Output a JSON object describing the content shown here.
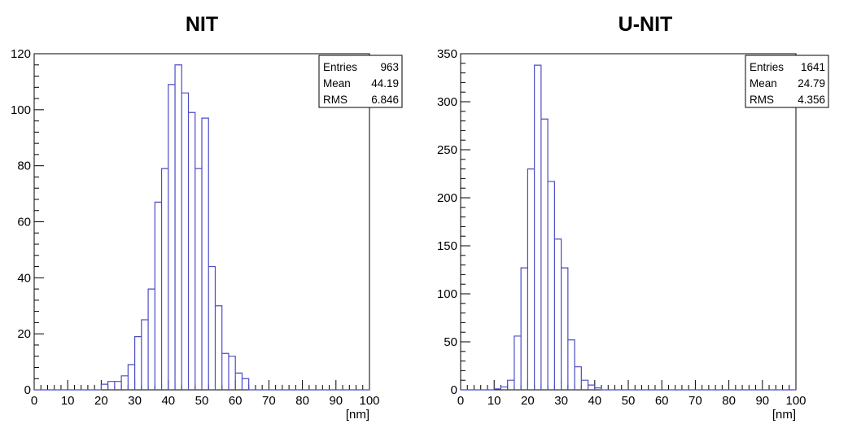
{
  "chart_data": [
    {
      "type": "bar",
      "title": "NIT",
      "xlabel": "[nm]",
      "ylabel": "",
      "xlim": [
        0,
        100
      ],
      "ylim": [
        0,
        120
      ],
      "bin_width": 2,
      "xticks": [
        "0",
        "10",
        "20",
        "30",
        "40",
        "50",
        "60",
        "70",
        "80",
        "90",
        "100"
      ],
      "yticks": [
        "0",
        "20",
        "40",
        "60",
        "80",
        "100",
        "120"
      ],
      "ytick_values": [
        0,
        20,
        40,
        60,
        80,
        100,
        120
      ],
      "bins_x_start": [
        20,
        22,
        24,
        26,
        28,
        30,
        32,
        34,
        36,
        38,
        40,
        42,
        44,
        46,
        48,
        50,
        52,
        54,
        56,
        58,
        60,
        62
      ],
      "values": [
        2,
        3,
        3,
        5,
        9,
        19,
        25,
        36,
        67,
        79,
        109,
        116,
        106,
        99,
        79,
        97,
        44,
        30,
        13,
        12,
        6,
        4
      ],
      "stats": {
        "entries_label": "Entries",
        "entries": "963",
        "mean_label": "Mean",
        "mean": "44.19",
        "rms_label": "RMS",
        "rms": "6.846"
      },
      "line_color": "#4b4bc8"
    },
    {
      "type": "bar",
      "title": "U-NIT",
      "xlabel": "[nm]",
      "ylabel": "",
      "xlim": [
        0,
        100
      ],
      "ylim": [
        0,
        350
      ],
      "bin_width": 2,
      "xticks": [
        "0",
        "10",
        "20",
        "30",
        "40",
        "50",
        "60",
        "70",
        "80",
        "90",
        "100"
      ],
      "yticks": [
        "0",
        "50",
        "100",
        "150",
        "200",
        "250",
        "300",
        "350"
      ],
      "ytick_values": [
        0,
        50,
        100,
        150,
        200,
        250,
        300,
        350
      ],
      "bins_x_start": [
        10,
        12,
        14,
        16,
        18,
        20,
        22,
        24,
        26,
        28,
        30,
        32,
        34,
        36,
        38,
        40
      ],
      "values": [
        1,
        3,
        10,
        56,
        127,
        230,
        338,
        282,
        217,
        157,
        127,
        52,
        24,
        10,
        5,
        2
      ],
      "stats": {
        "entries_label": "Entries",
        "entries": "1641",
        "mean_label": "Mean",
        "mean": "24.79",
        "rms_label": "RMS",
        "rms": "4.356"
      },
      "line_color": "#4b4bc8"
    }
  ]
}
